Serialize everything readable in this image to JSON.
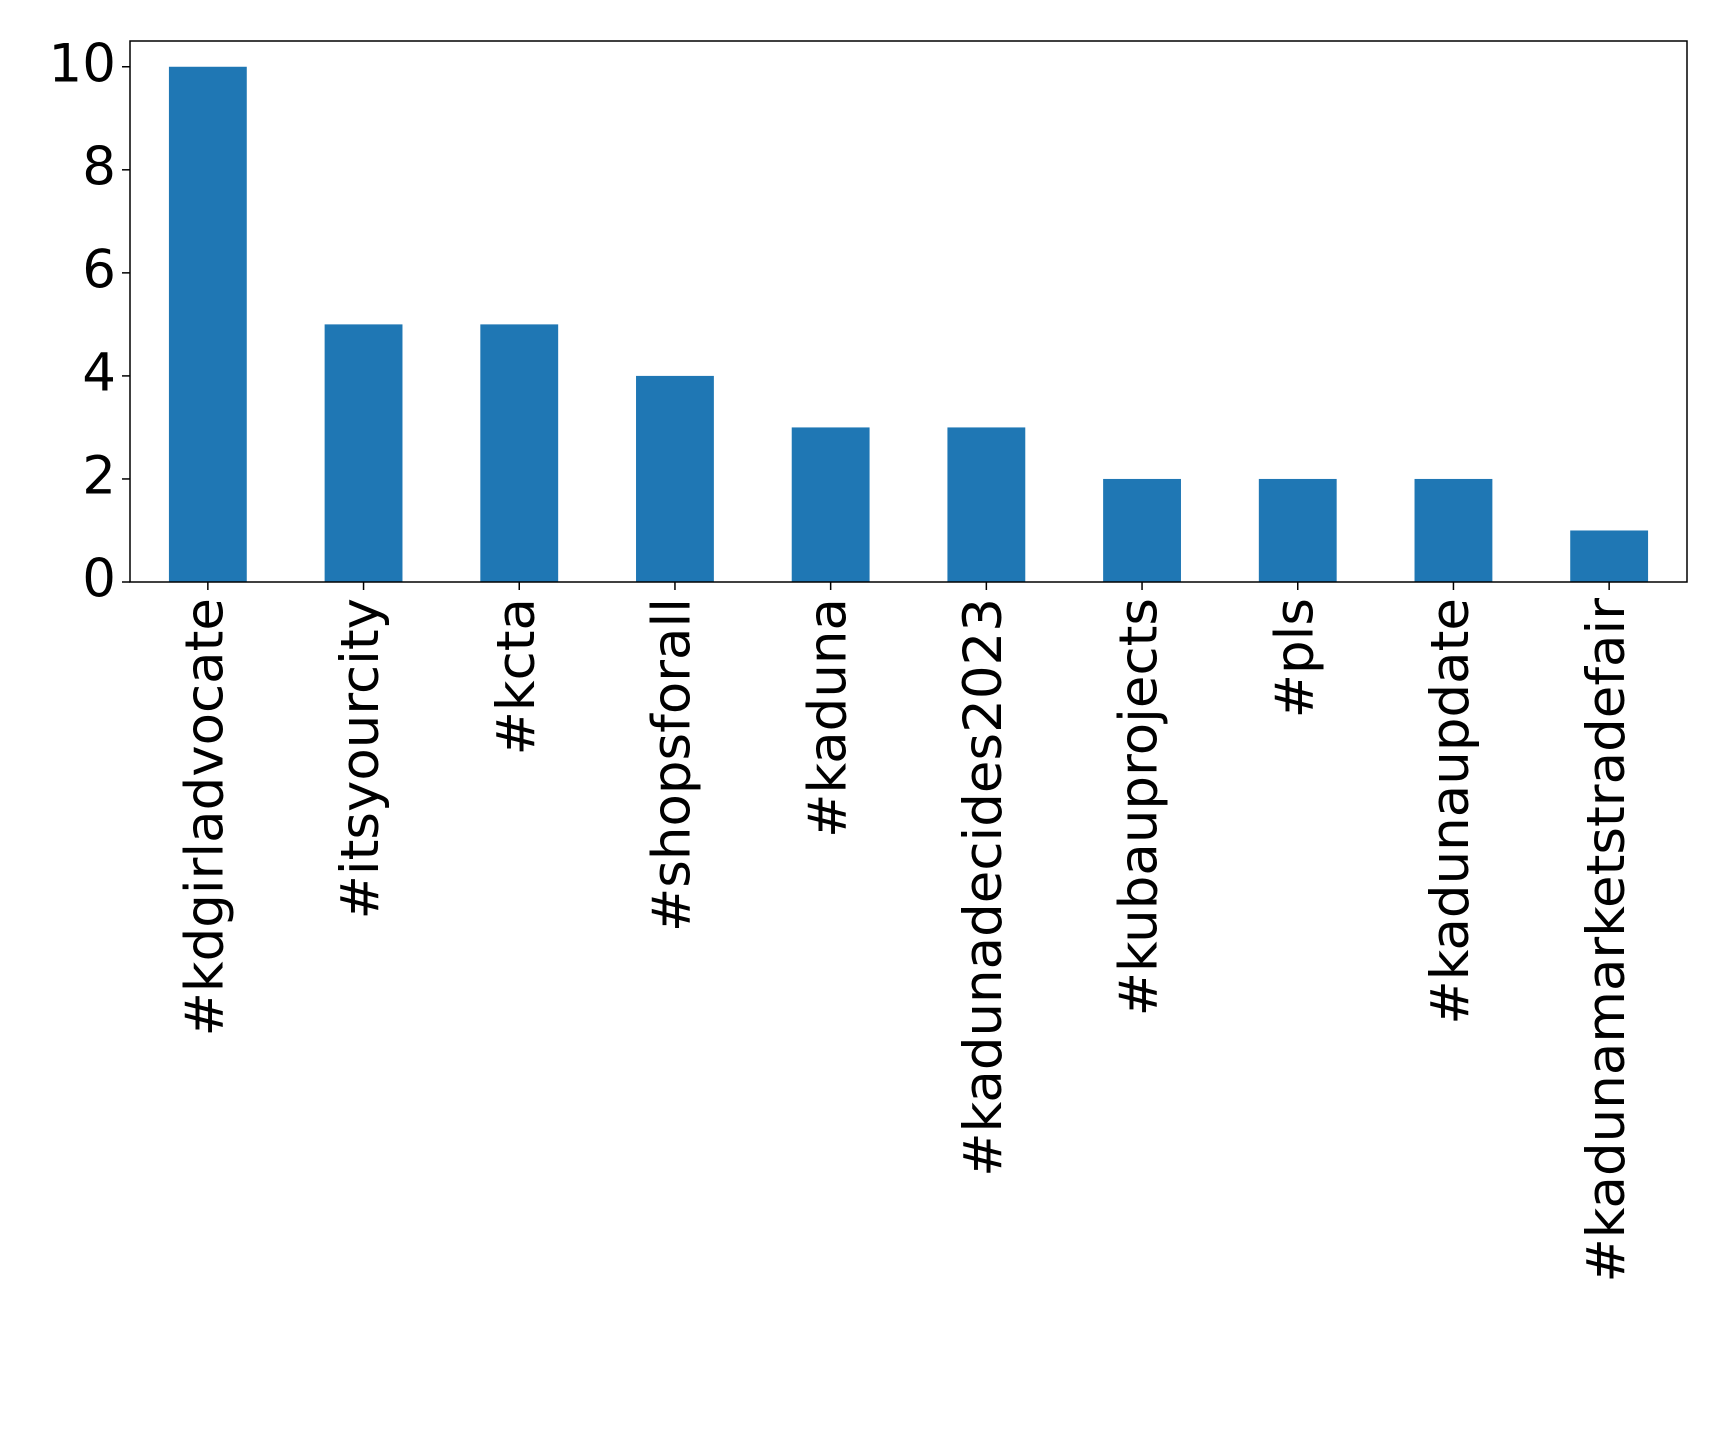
{
  "chart_data": {
    "type": "bar",
    "categories": [
      "#kdgirladvocate",
      "#itsyourcity",
      "#kcta",
      "#shopsforall",
      "#kaduna",
      "#kadunadecides2023",
      "#kubauprojects",
      "#pls",
      "#kadunaupdate",
      "#kadunamarketstradefair"
    ],
    "values": [
      10,
      5,
      5,
      4,
      3,
      3,
      2,
      2,
      2,
      1
    ],
    "color": "#1f77b4",
    "ylim": [
      0,
      10.5
    ],
    "yticks": [
      0,
      2,
      4,
      6,
      8,
      10
    ],
    "grid": false
  }
}
